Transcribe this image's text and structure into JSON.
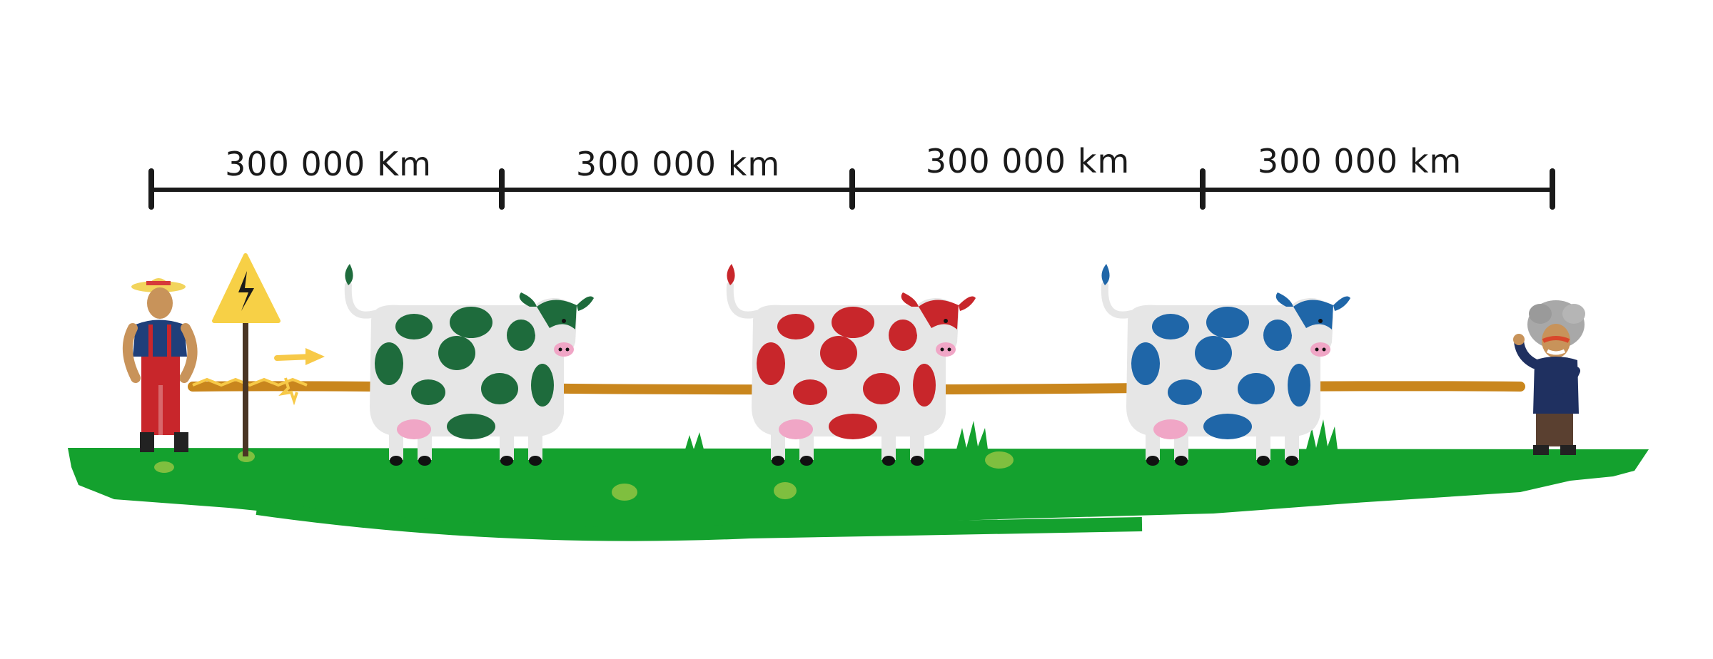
{
  "distance_labels": [
    {
      "text": "300 000 Km"
    },
    {
      "text": "300 000 km"
    },
    {
      "text": "300 000 km"
    },
    {
      "text": "300 000 km"
    }
  ],
  "cows": [
    {
      "name": "green-cow",
      "spot_color": "#1e6b3c"
    },
    {
      "name": "red-cow",
      "spot_color": "#c8262b"
    },
    {
      "name": "blue-cow",
      "spot_color": "#1f66a8"
    }
  ],
  "colors": {
    "grass": "#14a12e",
    "fence_wire": "#c9861d",
    "sign": "#f7d046",
    "arrow": "#f7c948",
    "scale_bar": "#1a1a1a",
    "cow_body": "#e6e6e6"
  },
  "icons": {
    "farmer": "farmer-figure",
    "warning_sign": "high-voltage-warning-sign",
    "spark_arrow": "arrow-right",
    "observer": "einstein-figure"
  }
}
